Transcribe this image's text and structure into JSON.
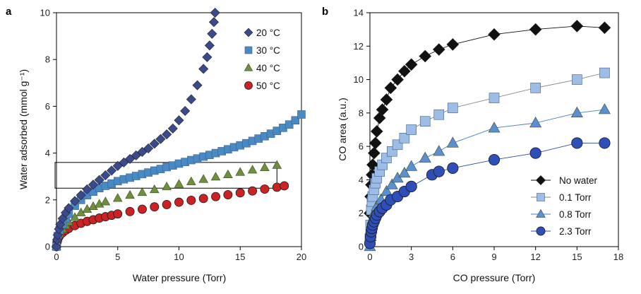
{
  "chart_data": [
    {
      "panel": "a",
      "type": "scatter",
      "xlabel": "Water pressure (Torr)",
      "ylabel": "Water adsorbed (mmol g⁻¹)",
      "xlim": [
        0,
        20
      ],
      "ylim": [
        0,
        10
      ],
      "xticks": [
        0,
        5,
        10,
        15,
        20
      ],
      "yticks": [
        0,
        2,
        4,
        6,
        8,
        10
      ],
      "legend_position": "top-right",
      "annotation": "rectangle highlighting water pressure 0-18 Torr, 2.5-3.6 mmol g⁻¹",
      "highlight_box": {
        "x": [
          0,
          18
        ],
        "y": [
          2.5,
          3.6
        ]
      },
      "series": [
        {
          "name": "20 °C",
          "marker": "diamond",
          "color": "#3a4a8c",
          "x": [
            0,
            0.05,
            0.1,
            0.2,
            0.3,
            0.5,
            0.75,
            1,
            1.5,
            2,
            2.5,
            3,
            3.5,
            4,
            4.5,
            5,
            5.5,
            6,
            6.5,
            7,
            7.5,
            8,
            8.5,
            9,
            9.5,
            10,
            10.5,
            11,
            11.5,
            12,
            12.3,
            12.5,
            12.7,
            12.85,
            12.95
          ],
          "y": [
            0,
            0.3,
            0.5,
            0.75,
            0.95,
            1.2,
            1.45,
            1.65,
            1.95,
            2.2,
            2.45,
            2.65,
            2.85,
            3.05,
            3.25,
            3.45,
            3.6,
            3.75,
            3.9,
            4.05,
            4.2,
            4.4,
            4.6,
            4.8,
            5.05,
            5.4,
            5.8,
            6.3,
            6.9,
            7.6,
            8.1,
            8.6,
            9.1,
            9.6,
            10.0
          ]
        },
        {
          "name": "30 °C",
          "marker": "square",
          "color": "#4a8ac4",
          "x": [
            0,
            0.1,
            0.25,
            0.5,
            0.75,
            1,
            1.5,
            2,
            2.5,
            3,
            3.5,
            4,
            4.5,
            5,
            5.5,
            6,
            6.5,
            7,
            7.5,
            8,
            8.5,
            9,
            9.5,
            10,
            10.5,
            11,
            11.5,
            12,
            12.5,
            13,
            13.5,
            14,
            14.5,
            15,
            15.5,
            16,
            16.5,
            17,
            17.5,
            18,
            18.5,
            19,
            19.5,
            20
          ],
          "y": [
            0,
            0.45,
            0.7,
            0.95,
            1.2,
            1.4,
            1.75,
            2.0,
            2.2,
            2.35,
            2.5,
            2.6,
            2.7,
            2.8,
            2.88,
            2.95,
            3.02,
            3.1,
            3.17,
            3.25,
            3.32,
            3.4,
            3.47,
            3.55,
            3.62,
            3.7,
            3.77,
            3.85,
            3.92,
            4.0,
            4.08,
            4.16,
            4.25,
            4.33,
            4.42,
            4.52,
            4.62,
            4.72,
            4.83,
            4.95,
            5.08,
            5.22,
            5.4,
            5.65
          ]
        },
        {
          "name": "40 °C",
          "marker": "triangle",
          "color": "#6f8f3a",
          "x": [
            0,
            0.1,
            0.25,
            0.5,
            0.75,
            1,
            1.5,
            2,
            2.5,
            3,
            3.5,
            4,
            5,
            6,
            7,
            8,
            9,
            10,
            11,
            12,
            13,
            14,
            15,
            16,
            17,
            18
          ],
          "y": [
            0,
            0.35,
            0.55,
            0.75,
            0.9,
            1.05,
            1.25,
            1.45,
            1.6,
            1.72,
            1.82,
            1.92,
            2.07,
            2.2,
            2.32,
            2.44,
            2.56,
            2.67,
            2.78,
            2.88,
            2.98,
            3.08,
            3.18,
            3.28,
            3.38,
            3.48
          ]
        },
        {
          "name": "50 °C",
          "marker": "circle",
          "color": "#cc2222",
          "x": [
            0,
            0.05,
            0.1,
            0.2,
            0.3,
            0.5,
            0.75,
            1,
            1.5,
            2,
            2.5,
            3,
            3.5,
            4,
            4.5,
            5,
            6,
            7,
            8,
            9,
            10,
            11,
            12,
            13,
            14,
            15,
            16,
            17,
            18,
            18.6
          ],
          "y": [
            0,
            0.2,
            0.3,
            0.42,
            0.5,
            0.6,
            0.7,
            0.78,
            0.9,
            1.0,
            1.08,
            1.15,
            1.22,
            1.28,
            1.34,
            1.4,
            1.5,
            1.6,
            1.7,
            1.8,
            1.9,
            1.98,
            2.06,
            2.14,
            2.22,
            2.3,
            2.38,
            2.46,
            2.54,
            2.6
          ]
        }
      ]
    },
    {
      "panel": "b",
      "type": "line",
      "xlabel": "CO pressure (Torr)",
      "ylabel": "CO area (a.u.)",
      "xlim": [
        0,
        18
      ],
      "ylim": [
        0,
        14
      ],
      "xticks": [
        0,
        3,
        6,
        9,
        12,
        15,
        18
      ],
      "yticks": [
        0,
        2,
        4,
        6,
        8,
        10,
        12,
        14
      ],
      "legend_position": "bottom-right",
      "series": [
        {
          "name": "No water",
          "marker": "diamond",
          "color": "#111111",
          "line_color": "#111111",
          "x": [
            0,
            0.05,
            0.1,
            0.15,
            0.2,
            0.3,
            0.4,
            0.5,
            0.7,
            0.9,
            1.2,
            1.5,
            2.0,
            2.5,
            3.0,
            4.0,
            5.0,
            6.0,
            9.0,
            12.0,
            15.0,
            17.0
          ],
          "y": [
            2.0,
            3.0,
            3.7,
            4.3,
            4.9,
            5.6,
            6.2,
            6.9,
            7.7,
            8.2,
            8.8,
            9.5,
            10.0,
            10.5,
            10.9,
            11.4,
            11.8,
            12.1,
            12.7,
            13.0,
            13.2,
            13.1
          ]
        },
        {
          "name": "0.1 Torr",
          "marker": "square",
          "color": "#9dbde6",
          "line_color": "#888888",
          "x": [
            0,
            0.05,
            0.1,
            0.15,
            0.2,
            0.3,
            0.4,
            0.5,
            0.7,
            0.9,
            1.2,
            1.6,
            2.0,
            2.5,
            3.0,
            4.0,
            5.0,
            6.0,
            9.0,
            12.0,
            15.0,
            17.0
          ],
          "y": [
            0.5,
            1.3,
            2.2,
            2.7,
            3.0,
            3.4,
            3.8,
            4.1,
            4.5,
            4.9,
            5.3,
            5.7,
            6.1,
            6.5,
            7.0,
            7.5,
            7.9,
            8.3,
            8.9,
            9.5,
            10.0,
            10.4
          ]
        },
        {
          "name": "0.8 Torr",
          "marker": "triangle",
          "color": "#5b8fd0",
          "line_color": "#4a7ec4",
          "x": [
            0,
            0.05,
            0.1,
            0.2,
            0.3,
            0.5,
            0.8,
            1.2,
            1.6,
            2.0,
            2.5,
            3.0,
            4.0,
            5.0,
            6.0,
            9.0,
            12.0,
            15.0,
            17.0
          ],
          "y": [
            0.0,
            0.6,
            1.1,
            1.6,
            2.0,
            2.4,
            2.8,
            3.3,
            3.7,
            4.1,
            4.4,
            4.8,
            5.3,
            5.7,
            6.2,
            7.1,
            7.4,
            8.0,
            8.2
          ]
        },
        {
          "name": "2.3 Torr",
          "marker": "circle",
          "color": "#2f4fb8",
          "line_color": "#2a4aa8",
          "x": [
            0,
            0.05,
            0.1,
            0.15,
            0.2,
            0.3,
            0.4,
            0.5,
            0.7,
            0.9,
            1.2,
            1.5,
            2.0,
            2.5,
            3.0,
            4.5,
            5.0,
            6.0,
            9.0,
            12.0,
            15.0,
            17.0
          ],
          "y": [
            0.2,
            0.6,
            0.9,
            1.1,
            1.3,
            1.5,
            1.7,
            1.9,
            2.1,
            2.3,
            2.5,
            2.8,
            3.0,
            3.3,
            3.6,
            4.3,
            4.5,
            4.7,
            5.2,
            5.6,
            6.2,
            6.2
          ]
        }
      ]
    }
  ]
}
